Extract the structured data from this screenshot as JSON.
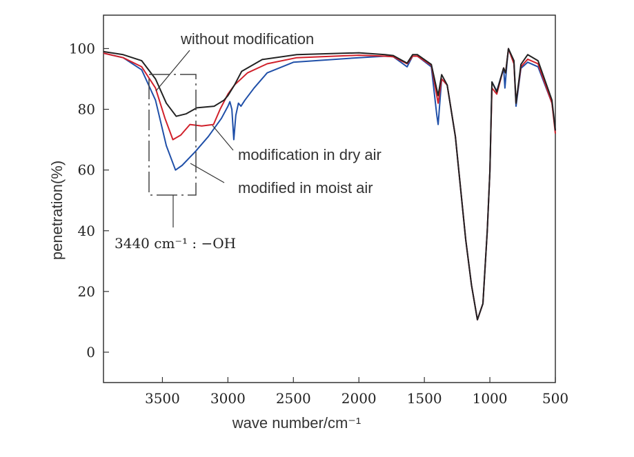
{
  "chart_data": {
    "type": "line",
    "title": "",
    "xlabel": "wave number/cm⁻¹",
    "ylabel": "penetration(%)",
    "xlim": [
      3950,
      500
    ],
    "ylim": [
      -10,
      111
    ],
    "x_ticks": [
      "3500",
      "3000",
      "2500",
      "2000",
      "1500",
      "1000",
      "500"
    ],
    "x_tick_values": [
      3500,
      3000,
      2500,
      2000,
      1500,
      1000,
      500
    ],
    "y_ticks": [
      "0",
      "20",
      "40",
      "60",
      "80",
      "100"
    ],
    "y_tick_values": [
      0,
      20,
      40,
      60,
      80,
      100
    ],
    "grid": false,
    "colors": {
      "without": "#222222",
      "dry": "#d0202a",
      "moist": "#1f4fa8"
    },
    "series": [
      {
        "name": "without modification",
        "key": "without",
        "points": [
          [
            3950,
            99
          ],
          [
            3800,
            98
          ],
          [
            3658,
            96
          ],
          [
            3553,
            90
          ],
          [
            3470,
            82
          ],
          [
            3395,
            77.7
          ],
          [
            3320,
            78.5
          ],
          [
            3237,
            80.5
          ],
          [
            3105,
            81
          ],
          [
            3030,
            83
          ],
          [
            3000,
            84.5
          ],
          [
            2950,
            88
          ],
          [
            2895,
            92.5
          ],
          [
            2737,
            96.4
          ],
          [
            2474,
            98
          ],
          [
            2000,
            98.6
          ],
          [
            1800,
            98
          ],
          [
            1737,
            97.7
          ],
          [
            1632,
            95.2
          ],
          [
            1590,
            98
          ],
          [
            1553,
            98
          ],
          [
            1447,
            94.8
          ],
          [
            1395,
            84.5
          ],
          [
            1368,
            91.4
          ],
          [
            1326,
            88
          ],
          [
            1263,
            71
          ],
          [
            1184,
            37
          ],
          [
            1140,
            22
          ],
          [
            1095,
            10.7
          ],
          [
            1053,
            16
          ],
          [
            1020,
            40
          ],
          [
            1000,
            59.5
          ],
          [
            984,
            89
          ],
          [
            947,
            85.7
          ],
          [
            895,
            93.6
          ],
          [
            880,
            92
          ],
          [
            858,
            100
          ],
          [
            816,
            96
          ],
          [
            800,
            82
          ],
          [
            763,
            94.8
          ],
          [
            711,
            98
          ],
          [
            632,
            96
          ],
          [
            526,
            83
          ],
          [
            500,
            73
          ]
        ]
      },
      {
        "name": "modification in dry air",
        "key": "dry",
        "points": [
          [
            3950,
            98.5
          ],
          [
            3800,
            97
          ],
          [
            3658,
            94
          ],
          [
            3553,
            87
          ],
          [
            3480,
            77
          ],
          [
            3420,
            70
          ],
          [
            3360,
            71.5
          ],
          [
            3290,
            75
          ],
          [
            3200,
            74.5
          ],
          [
            3110,
            75
          ],
          [
            3060,
            80
          ],
          [
            3000,
            85
          ],
          [
            2950,
            88
          ],
          [
            2850,
            92
          ],
          [
            2700,
            95
          ],
          [
            2474,
            97
          ],
          [
            2000,
            97.8
          ],
          [
            1800,
            97.5
          ],
          [
            1737,
            97.3
          ],
          [
            1632,
            95
          ],
          [
            1590,
            97.5
          ],
          [
            1553,
            97.5
          ],
          [
            1447,
            94.5
          ],
          [
            1395,
            82
          ],
          [
            1368,
            90
          ],
          [
            1326,
            88
          ],
          [
            1263,
            71
          ],
          [
            1184,
            37
          ],
          [
            1140,
            22
          ],
          [
            1095,
            10.7
          ],
          [
            1053,
            16
          ],
          [
            1020,
            40
          ],
          [
            1000,
            59.5
          ],
          [
            984,
            87
          ],
          [
            947,
            85
          ],
          [
            895,
            93.6
          ],
          [
            880,
            92
          ],
          [
            858,
            100
          ],
          [
            816,
            95
          ],
          [
            800,
            82
          ],
          [
            763,
            94
          ],
          [
            711,
            96.5
          ],
          [
            632,
            95
          ],
          [
            526,
            82
          ],
          [
            500,
            72
          ]
        ]
      },
      {
        "name": "modified in moist air",
        "key": "moist",
        "points": [
          [
            3950,
            98.5
          ],
          [
            3800,
            97
          ],
          [
            3658,
            93
          ],
          [
            3553,
            83
          ],
          [
            3470,
            68
          ],
          [
            3400,
            60
          ],
          [
            3350,
            61.5
          ],
          [
            3250,
            66
          ],
          [
            3150,
            71
          ],
          [
            3050,
            77
          ],
          [
            3000,
            81
          ],
          [
            2985,
            82.5
          ],
          [
            2970,
            80
          ],
          [
            2955,
            70
          ],
          [
            2940,
            78
          ],
          [
            2920,
            82
          ],
          [
            2900,
            81
          ],
          [
            2870,
            83
          ],
          [
            2800,
            87
          ],
          [
            2700,
            92
          ],
          [
            2500,
            95.5
          ],
          [
            2000,
            97
          ],
          [
            1800,
            97.5
          ],
          [
            1737,
            97.3
          ],
          [
            1632,
            94
          ],
          [
            1590,
            97.5
          ],
          [
            1553,
            97.5
          ],
          [
            1447,
            94
          ],
          [
            1405,
            78
          ],
          [
            1395,
            75
          ],
          [
            1368,
            90
          ],
          [
            1326,
            88
          ],
          [
            1263,
            71
          ],
          [
            1184,
            37
          ],
          [
            1140,
            22
          ],
          [
            1095,
            10.7
          ],
          [
            1053,
            16
          ],
          [
            1020,
            40
          ],
          [
            1000,
            59.5
          ],
          [
            984,
            89
          ],
          [
            947,
            86
          ],
          [
            895,
            93.6
          ],
          [
            885,
            87
          ],
          [
            870,
            95
          ],
          [
            858,
            100
          ],
          [
            816,
            95
          ],
          [
            800,
            81
          ],
          [
            763,
            93.5
          ],
          [
            711,
            95.5
          ],
          [
            632,
            94
          ],
          [
            526,
            82
          ],
          [
            500,
            73
          ]
        ]
      }
    ],
    "annotations": {
      "without": "without modification",
      "dry": "modification in dry air",
      "moist": "modified in moist air",
      "oh_label": "3440 cm⁻¹ : −OH"
    }
  }
}
